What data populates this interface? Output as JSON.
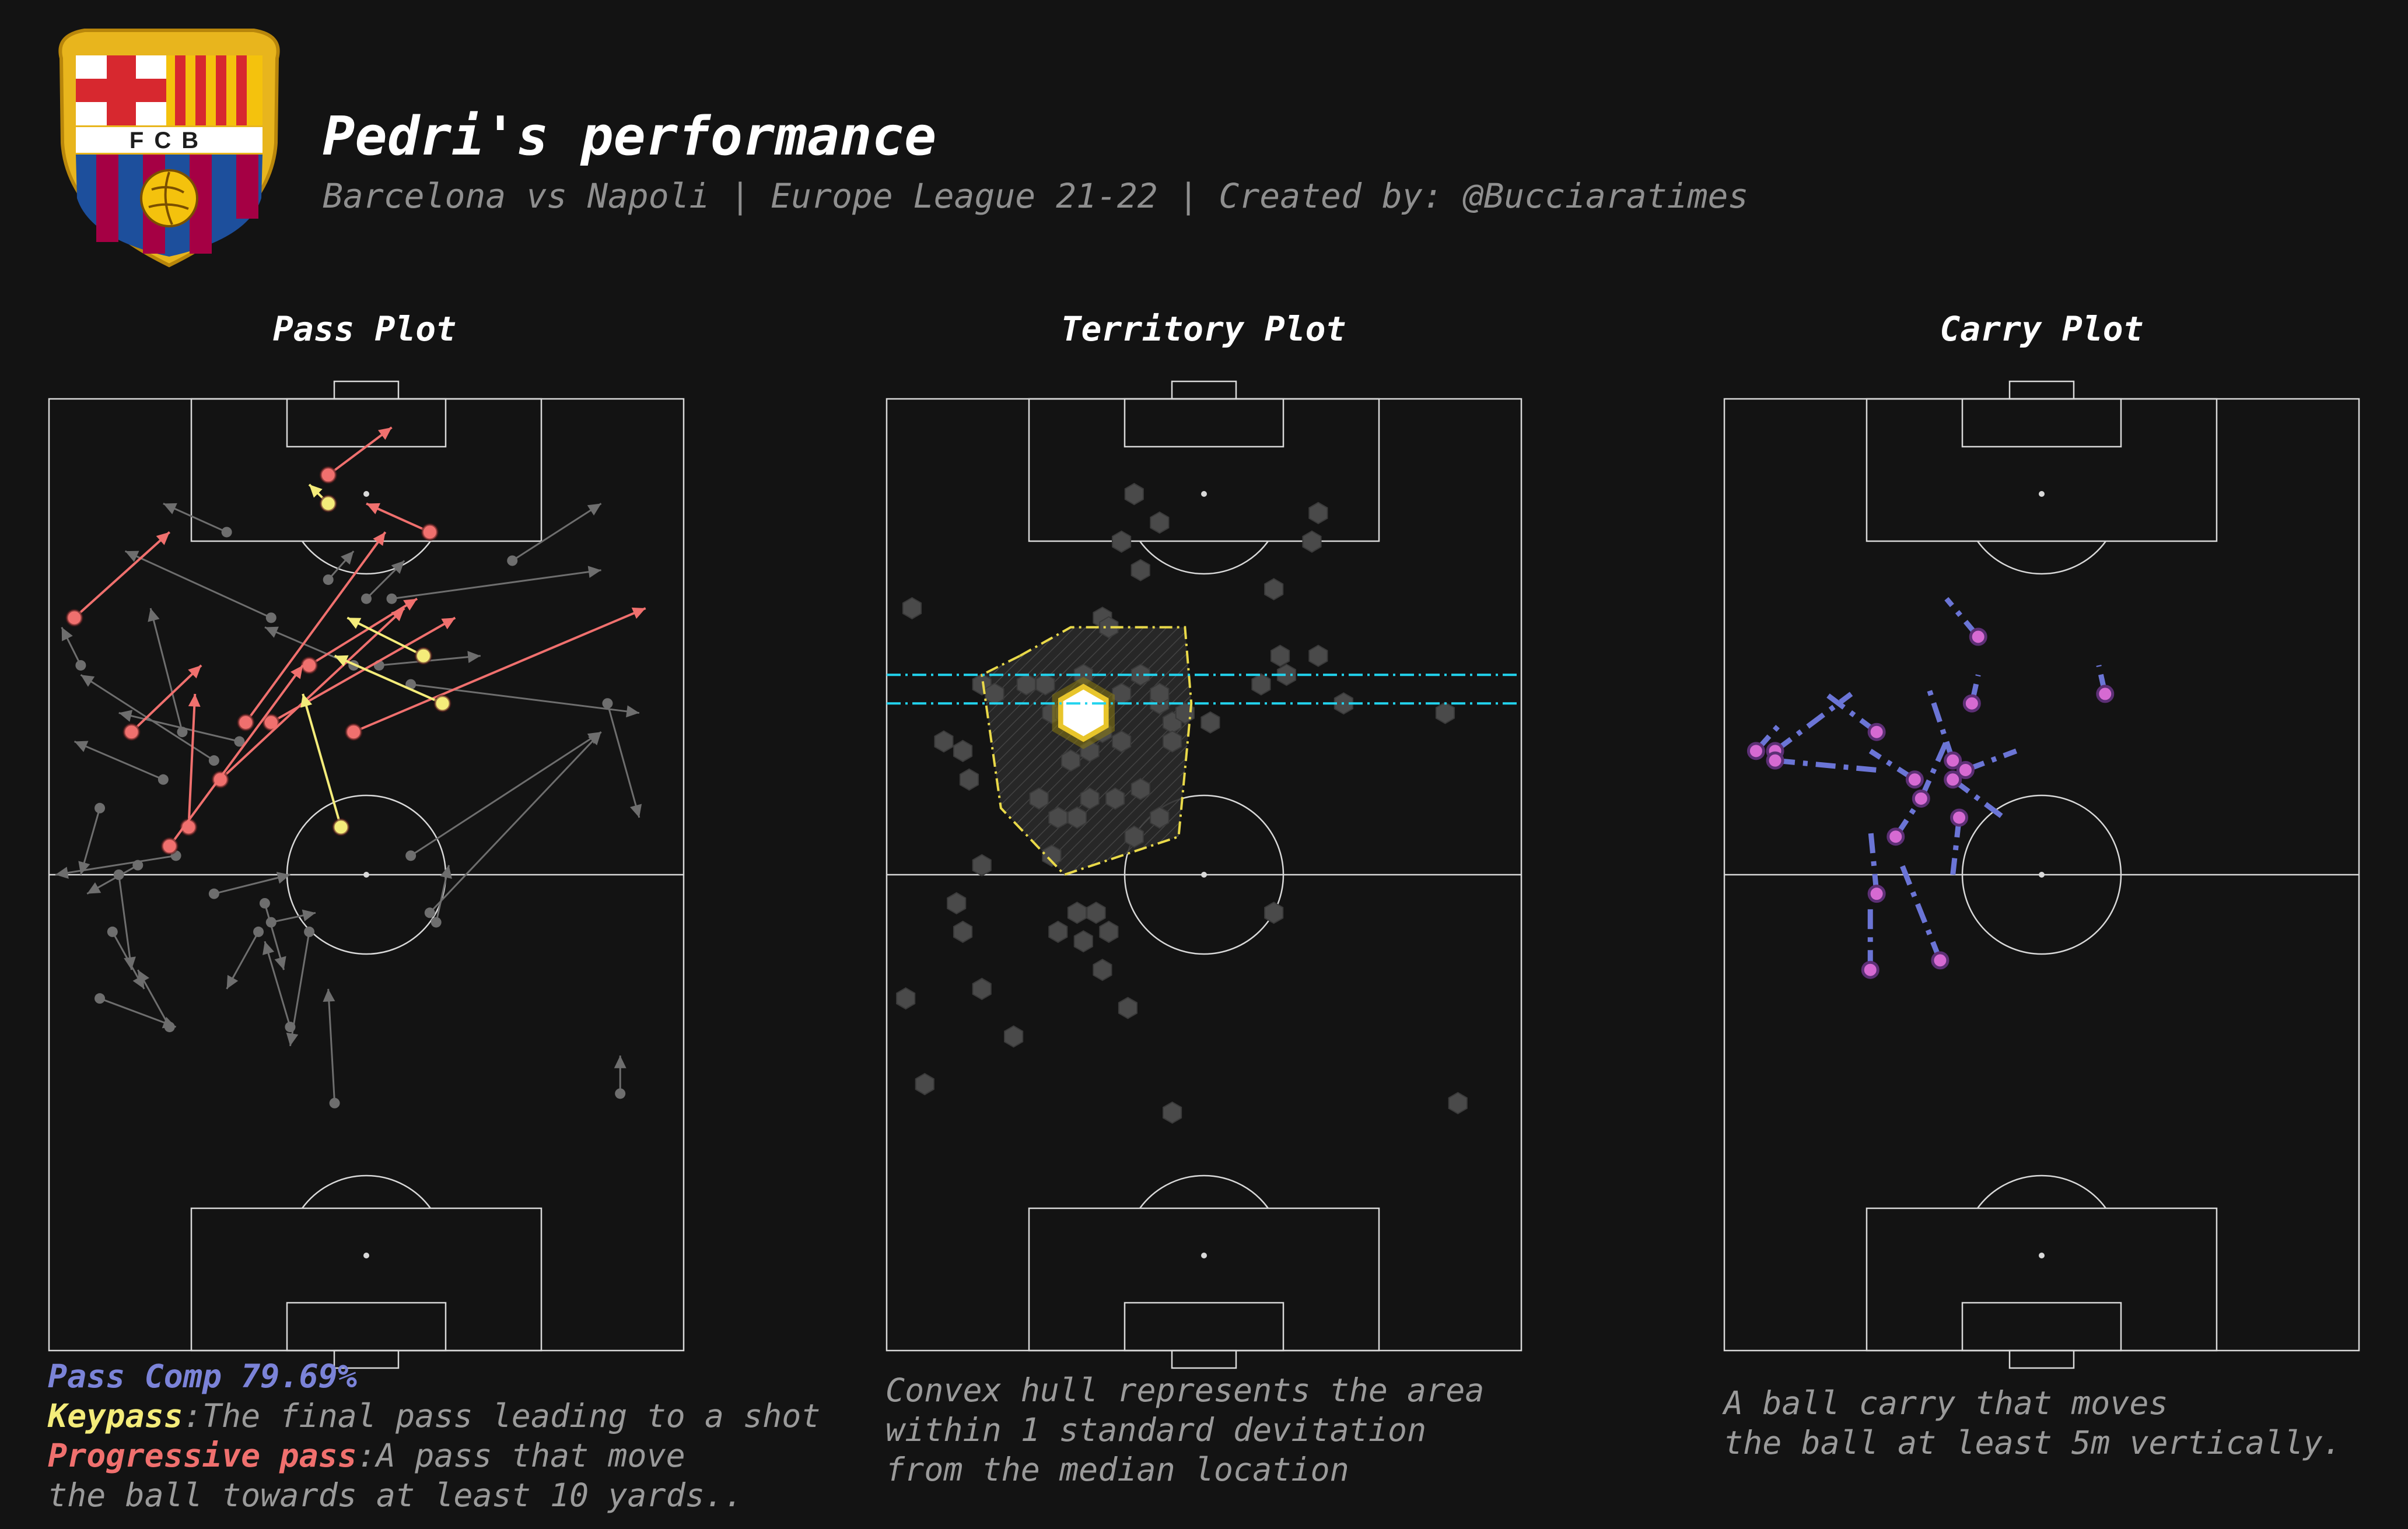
{
  "header": {
    "title": "Pedri's performance",
    "subtitle": "Barcelona vs Napoli | Europe League 21-22 | Created by: @Bucciaratimes",
    "crest_text": "FCB"
  },
  "colors": {
    "background": "#131313",
    "pitch_lines": "#d9d9d9",
    "pass": "#6e6e6e",
    "keypass": "#f4ec7a",
    "progressive": "#f0706e",
    "carry": "#6b75d6",
    "carry_point": "#d66ad2",
    "median_line": "#22d3ee",
    "hull": "#e9d949",
    "pass_comp": "#7b83d8"
  },
  "panels": {
    "pass": {
      "title": "Pass Plot"
    },
    "territory": {
      "title": "Territory Plot"
    },
    "carry": {
      "title": "Carry Plot"
    }
  },
  "notes": {
    "pass_comp": "Pass Comp 79.69%",
    "keypass_label": "Keypass",
    "keypass_text": ":The final pass leading to a shot",
    "progressive_label": "Progressive pass",
    "progressive_text": ":A pass that move",
    "progressive_text2": "the ball towards at least 10 yards..",
    "territory": "Convex hull represents the area\nwithin 1 standard devitation\nfrom the median location",
    "carry": "A ball carry that moves\nthe ball at least 5m vertically."
  },
  "chart_data": [
    {
      "type": "scatter",
      "name_key": "pass",
      "xlim": [
        0,
        100
      ],
      "ylim": [
        0,
        100
      ],
      "orientation": "vertical pitch, attacking upward",
      "passes": [
        {
          "x1": 44,
          "y1": 89,
          "x2": 41,
          "y2": 91,
          "kind": "keypass"
        },
        {
          "x1": 60,
          "y1": 86,
          "x2": 50,
          "y2": 89,
          "kind": "progressive"
        },
        {
          "x1": 44,
          "y1": 92,
          "x2": 54,
          "y2": 97,
          "kind": "progressive"
        },
        {
          "x1": 4,
          "y1": 77,
          "x2": 19,
          "y2": 86,
          "kind": "progressive"
        },
        {
          "x1": 59,
          "y1": 73,
          "x2": 47,
          "y2": 77,
          "kind": "keypass"
        },
        {
          "x1": 62,
          "y1": 68,
          "x2": 45,
          "y2": 73,
          "kind": "keypass"
        },
        {
          "x1": 41,
          "y1": 72,
          "x2": 58,
          "y2": 79,
          "kind": "progressive"
        },
        {
          "x1": 35,
          "y1": 66,
          "x2": 64,
          "y2": 77,
          "kind": "progressive"
        },
        {
          "x1": 48,
          "y1": 65,
          "x2": 94,
          "y2": 78,
          "kind": "progressive"
        },
        {
          "x1": 31,
          "y1": 66,
          "x2": 53,
          "y2": 86,
          "kind": "progressive"
        },
        {
          "x1": 27,
          "y1": 60,
          "x2": 56,
          "y2": 78,
          "kind": "progressive"
        },
        {
          "x1": 22,
          "y1": 55,
          "x2": 23,
          "y2": 69,
          "kind": "progressive"
        },
        {
          "x1": 19,
          "y1": 53,
          "x2": 40,
          "y2": 72,
          "kind": "progressive"
        },
        {
          "x1": 13,
          "y1": 65,
          "x2": 24,
          "y2": 72,
          "kind": "progressive"
        },
        {
          "x1": 46,
          "y1": 55,
          "x2": 40,
          "y2": 69,
          "kind": "keypass"
        },
        {
          "x1": 30,
          "y1": 64,
          "x2": 11,
          "y2": 67,
          "kind": "pass"
        },
        {
          "x1": 21,
          "y1": 65,
          "x2": 16,
          "y2": 78,
          "kind": "pass"
        },
        {
          "x1": 5,
          "y1": 72,
          "x2": 2,
          "y2": 76,
          "kind": "pass"
        },
        {
          "x1": 18,
          "y1": 60,
          "x2": 4,
          "y2": 64,
          "kind": "pass"
        },
        {
          "x1": 26,
          "y1": 62,
          "x2": 5,
          "y2": 71,
          "kind": "pass"
        },
        {
          "x1": 35,
          "y1": 77,
          "x2": 12,
          "y2": 84,
          "kind": "pass"
        },
        {
          "x1": 48,
          "y1": 72,
          "x2": 34,
          "y2": 76,
          "kind": "pass"
        },
        {
          "x1": 52,
          "y1": 72,
          "x2": 68,
          "y2": 73,
          "kind": "pass"
        },
        {
          "x1": 54,
          "y1": 79,
          "x2": 87,
          "y2": 82,
          "kind": "pass"
        },
        {
          "x1": 57,
          "y1": 70,
          "x2": 93,
          "y2": 67,
          "kind": "pass"
        },
        {
          "x1": 88,
          "y1": 68,
          "x2": 93,
          "y2": 56,
          "kind": "pass"
        },
        {
          "x1": 57,
          "y1": 52,
          "x2": 87,
          "y2": 65,
          "kind": "pass"
        },
        {
          "x1": 60,
          "y1": 46,
          "x2": 87,
          "y2": 65,
          "kind": "pass"
        },
        {
          "x1": 20,
          "y1": 52,
          "x2": 1,
          "y2": 50,
          "kind": "pass"
        },
        {
          "x1": 14,
          "y1": 51,
          "x2": 6,
          "y2": 48,
          "kind": "pass"
        },
        {
          "x1": 8,
          "y1": 57,
          "x2": 5,
          "y2": 50,
          "kind": "pass"
        },
        {
          "x1": 11,
          "y1": 50,
          "x2": 13,
          "y2": 40,
          "kind": "pass"
        },
        {
          "x1": 33,
          "y1": 44,
          "x2": 28,
          "y2": 38,
          "kind": "pass"
        },
        {
          "x1": 35,
          "y1": 45,
          "x2": 42,
          "y2": 46,
          "kind": "pass"
        },
        {
          "x1": 34,
          "y1": 47,
          "x2": 37,
          "y2": 40,
          "kind": "pass"
        },
        {
          "x1": 10,
          "y1": 44,
          "x2": 15,
          "y2": 38,
          "kind": "pass"
        },
        {
          "x1": 8,
          "y1": 37,
          "x2": 20,
          "y2": 34,
          "kind": "pass"
        },
        {
          "x1": 19,
          "y1": 34,
          "x2": 14,
          "y2": 40,
          "kind": "pass"
        },
        {
          "x1": 26,
          "y1": 48,
          "x2": 38,
          "y2": 50,
          "kind": "pass"
        },
        {
          "x1": 41,
          "y1": 44,
          "x2": 38,
          "y2": 32,
          "kind": "pass"
        },
        {
          "x1": 38,
          "y1": 34,
          "x2": 34,
          "y2": 43,
          "kind": "pass"
        },
        {
          "x1": 45,
          "y1": 26,
          "x2": 44,
          "y2": 38,
          "kind": "pass"
        },
        {
          "x1": 90,
          "y1": 27,
          "x2": 90,
          "y2": 31,
          "kind": "pass"
        },
        {
          "x1": 61,
          "y1": 45,
          "x2": 63,
          "y2": 51,
          "kind": "pass"
        },
        {
          "x1": 28,
          "y1": 86,
          "x2": 18,
          "y2": 89,
          "kind": "pass"
        },
        {
          "x1": 44,
          "y1": 81,
          "x2": 48,
          "y2": 84,
          "kind": "pass"
        },
        {
          "x1": 73,
          "y1": 83,
          "x2": 87,
          "y2": 89,
          "kind": "pass"
        },
        {
          "x1": 50,
          "y1": 79,
          "x2": 56,
          "y2": 83,
          "kind": "pass"
        }
      ]
    },
    {
      "type": "heatmap",
      "name_key": "territory",
      "xlim": [
        0,
        100
      ],
      "ylim": [
        0,
        100
      ],
      "median_lines_y": [
        68,
        71
      ],
      "peak": {
        "x": 31,
        "y": 67
      },
      "hull": [
        [
          21,
          73
        ],
        [
          29,
          76
        ],
        [
          47,
          76
        ],
        [
          48,
          68
        ],
        [
          46,
          54
        ],
        [
          28,
          50
        ],
        [
          18,
          57
        ],
        [
          15,
          71
        ]
      ],
      "touches": [
        [
          39,
          90
        ],
        [
          43,
          87
        ],
        [
          68,
          88
        ],
        [
          67,
          85
        ],
        [
          37,
          85
        ],
        [
          40,
          82
        ],
        [
          61,
          80
        ],
        [
          34,
          77
        ],
        [
          35,
          76
        ],
        [
          4,
          78
        ],
        [
          68,
          73
        ],
        [
          59,
          70
        ],
        [
          62,
          73
        ],
        [
          31,
          71
        ],
        [
          22,
          70
        ],
        [
          25,
          70
        ],
        [
          15,
          70
        ],
        [
          17,
          69
        ],
        [
          26,
          67
        ],
        [
          28,
          67
        ],
        [
          37,
          69
        ],
        [
          43,
          68
        ],
        [
          45,
          66
        ],
        [
          47,
          67
        ],
        [
          40,
          71
        ],
        [
          43,
          69
        ],
        [
          34,
          65
        ],
        [
          37,
          64
        ],
        [
          29,
          62
        ],
        [
          32,
          63
        ],
        [
          45,
          64
        ],
        [
          51,
          66
        ],
        [
          63,
          71
        ],
        [
          72,
          68
        ],
        [
          88,
          67
        ],
        [
          9,
          64
        ],
        [
          12,
          63
        ],
        [
          13,
          60
        ],
        [
          24,
          58
        ],
        [
          27,
          56
        ],
        [
          30,
          56
        ],
        [
          32,
          58
        ],
        [
          40,
          59
        ],
        [
          43,
          56
        ],
        [
          26,
          52
        ],
        [
          15,
          51
        ],
        [
          39,
          54
        ],
        [
          36,
          58
        ],
        [
          11,
          47
        ],
        [
          33,
          46
        ],
        [
          35,
          44
        ],
        [
          12,
          44
        ],
        [
          30,
          46
        ],
        [
          61,
          46
        ],
        [
          34,
          40
        ],
        [
          15,
          38
        ],
        [
          3,
          37
        ],
        [
          38,
          36
        ],
        [
          20,
          33
        ],
        [
          6,
          28
        ],
        [
          45,
          25
        ],
        [
          90,
          26
        ],
        [
          31,
          43
        ],
        [
          27,
          44
        ]
      ]
    },
    {
      "type": "line",
      "name_key": "carry",
      "xlim": [
        0,
        100
      ],
      "ylim": [
        0,
        100
      ],
      "carries": [
        {
          "x1": 40,
          "y1": 75,
          "x2": 35,
          "y2": 79
        },
        {
          "x1": 39,
          "y1": 68,
          "x2": 40,
          "y2": 71
        },
        {
          "x1": 60,
          "y1": 69,
          "x2": 59,
          "y2": 72
        },
        {
          "x1": 36,
          "y1": 60,
          "x2": 44,
          "y2": 56
        },
        {
          "x1": 37,
          "y1": 56,
          "x2": 36,
          "y2": 50
        },
        {
          "x1": 24,
          "y1": 65,
          "x2": 16,
          "y2": 69
        },
        {
          "x1": 8,
          "y1": 63,
          "x2": 20,
          "y2": 69
        },
        {
          "x1": 5,
          "y1": 63,
          "x2": 9,
          "y2": 66
        },
        {
          "x1": 8,
          "y1": 62,
          "x2": 24,
          "y2": 61
        },
        {
          "x1": 30,
          "y1": 60,
          "x2": 23,
          "y2": 63
        },
        {
          "x1": 27,
          "y1": 54,
          "x2": 30,
          "y2": 57
        },
        {
          "x1": 24,
          "y1": 48,
          "x2": 23,
          "y2": 55
        },
        {
          "x1": 23,
          "y1": 40,
          "x2": 23,
          "y2": 47
        },
        {
          "x1": 34,
          "y1": 41,
          "x2": 28,
          "y2": 51
        },
        {
          "x1": 36,
          "y1": 62,
          "x2": 32,
          "y2": 70
        },
        {
          "x1": 38,
          "y1": 61,
          "x2": 46,
          "y2": 63
        },
        {
          "x1": 31,
          "y1": 58,
          "x2": 35,
          "y2": 64
        }
      ]
    }
  ]
}
